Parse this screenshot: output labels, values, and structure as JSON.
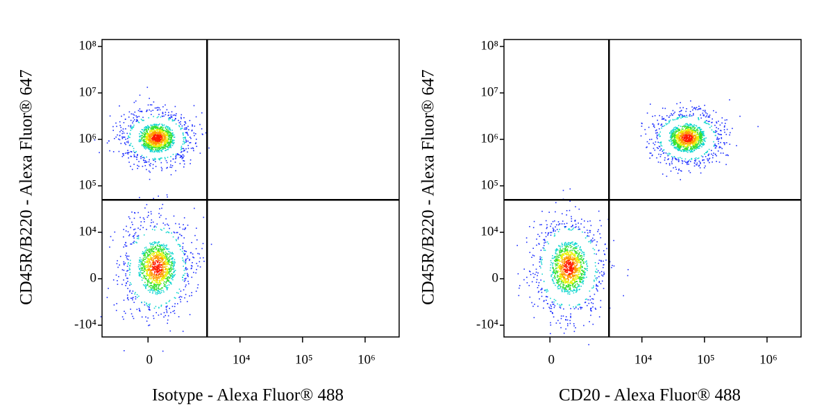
{
  "chart_data": [
    {
      "type": "scatter",
      "x_label": "Isotype - Alexa Fluor® 488",
      "y_label": "CD45R/B220 - Alexa Fluor® 647",
      "x": [
        900,
        900
      ],
      "values": [
        1100000,
        2500
      ],
      "xlim": [
        -5000,
        3500000
      ],
      "ylim": [
        -17900,
        141000000
      ],
      "xticks": [
        0,
        {
          "value": 10000,
          "label": "10⁴"
        },
        {
          "value": 100000,
          "label": "10⁵"
        },
        {
          "value": 1000000,
          "label": "10⁶"
        }
      ],
      "yticks": [
        {
          "value": -10000,
          "label": "-10⁴"
        },
        0,
        {
          "value": 10000,
          "label": "10⁴"
        },
        {
          "value": 100000,
          "label": "10⁵"
        },
        {
          "value": 1000000,
          "label": "10⁶"
        },
        {
          "value": 10000000,
          "label": "10⁷"
        },
        {
          "value": 100000000,
          "label": "10⁸"
        }
      ],
      "gate": {
        "x": 6420,
        "y": 50000
      },
      "scale": "biexponential"
    },
    {
      "type": "scatter",
      "x_label": "CD20 - Alexa Fluor® 488",
      "y_label": "CD45R/B220 - Alexa Fluor® 647",
      "x": [
        52000,
        2000
      ],
      "values": [
        1100000,
        2500
      ],
      "xlim": [
        -5000,
        3500000
      ],
      "ylim": [
        -17900,
        141000000
      ],
      "xticks": [
        0,
        {
          "value": 10000,
          "label": "10⁴"
        },
        {
          "value": 100000,
          "label": "10⁵"
        },
        {
          "value": 1000000,
          "label": "10⁶"
        }
      ],
      "yticks": [
        {
          "value": -10000,
          "label": "-10⁴"
        },
        0,
        {
          "value": 10000,
          "label": "10⁴"
        },
        {
          "value": 100000,
          "label": "10⁵"
        },
        {
          "value": 1000000,
          "label": "10⁶"
        },
        {
          "value": 10000000,
          "label": "10⁷"
        },
        {
          "value": 100000000,
          "label": "10⁸"
        }
      ],
      "gate": {
        "x": 6420,
        "y": 50000
      },
      "scale": "biexponential"
    }
  ]
}
